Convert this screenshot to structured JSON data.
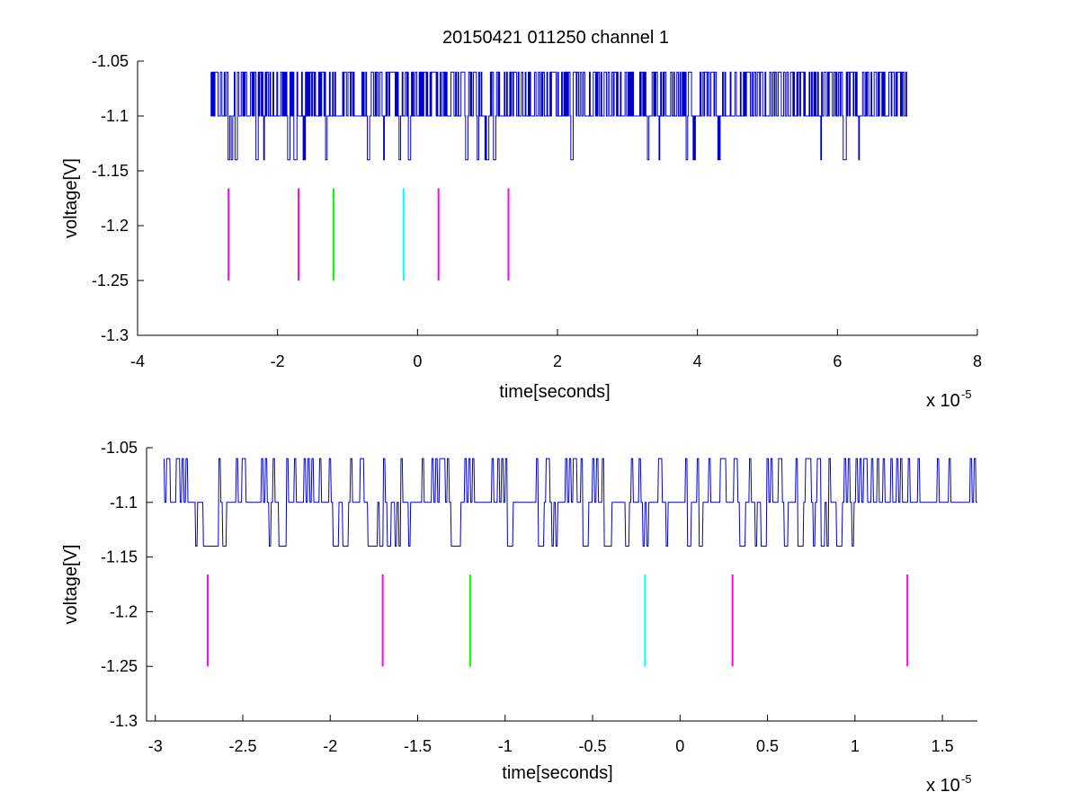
{
  "title": "20150421 011250 channel 1",
  "chart_data": [
    {
      "type": "line",
      "title": "20150421 011250 channel 1",
      "xlabel": "time[seconds]",
      "ylabel": "voltage[V]",
      "x_exponent_label": "x 10",
      "x_exponent": "-5",
      "xlim": [
        -4,
        8
      ],
      "ylim": [
        -1.3,
        -1.05
      ],
      "xticks": [
        "-4",
        "-2",
        "0",
        "2",
        "4",
        "6",
        "8"
      ],
      "yticks": [
        "-1.05",
        "-1.1",
        "-1.15",
        "-1.2",
        "-1.25",
        "-1.3"
      ],
      "grid": false,
      "series": [
        {
          "kind": "step-signal",
          "color": "#0000cc",
          "x_range": [
            -2.95,
            7.0
          ],
          "levels": [
            -1.06,
            -1.1,
            -1.14
          ],
          "baseline": -1.1,
          "dip_times": [
            -2.7,
            -2.65,
            -2.6,
            -2.3,
            -2.2,
            -1.85,
            -1.75,
            -1.62,
            -1.3,
            -0.7,
            -0.5,
            -0.25,
            -0.12,
            0.7,
            0.85,
            0.95,
            1.0,
            1.1,
            2.2,
            3.3,
            3.45,
            3.85,
            3.95,
            4.3,
            5.75,
            6.1,
            6.3
          ]
        }
      ],
      "markers": [
        {
          "x": -2.7,
          "color": "#ff00ff",
          "y_range": [
            -1.25,
            -1.166
          ]
        },
        {
          "x": -1.7,
          "color": "#ff00ff",
          "y_range": [
            -1.25,
            -1.166
          ]
        },
        {
          "x": -1.2,
          "color": "#00ff00",
          "y_range": [
            -1.25,
            -1.166
          ]
        },
        {
          "x": -0.2,
          "color": "#00ffff",
          "y_range": [
            -1.25,
            -1.166
          ]
        },
        {
          "x": 0.3,
          "color": "#ff00ff",
          "y_range": [
            -1.25,
            -1.166
          ]
        },
        {
          "x": 1.3,
          "color": "#ff00ff",
          "y_range": [
            -1.25,
            -1.166
          ]
        }
      ]
    },
    {
      "type": "line",
      "xlabel": "time[seconds]",
      "ylabel": "voltage[V]",
      "x_exponent_label": "x 10",
      "x_exponent": "-5",
      "xlim": [
        -3.05,
        1.7
      ],
      "ylim": [
        -1.3,
        -1.05
      ],
      "xticks": [
        "-3",
        "-2.5",
        "-2",
        "-1.5",
        "-1",
        "-0.5",
        "0",
        "0.5",
        "1",
        "1.5"
      ],
      "yticks": [
        "-1.05",
        "-1.1",
        "-1.15",
        "-1.2",
        "-1.25",
        "-1.3"
      ],
      "grid": false,
      "series": [
        {
          "kind": "step-signal",
          "color": "#0000cc",
          "x_range": [
            -2.95,
            1.7
          ],
          "levels": [
            -1.06,
            -1.1,
            -1.14
          ],
          "baseline": -1.1,
          "dip_times": [
            -2.78,
            -2.74,
            -2.7,
            -2.66,
            -2.62,
            -2.35,
            -2.28,
            -1.98,
            -1.92,
            -1.78,
            -1.75,
            -1.72,
            -1.68,
            -1.64,
            -1.62,
            -1.55,
            -1.3,
            -1.28,
            -0.98,
            -0.8,
            -0.72,
            -0.55,
            -0.42,
            -0.32,
            -0.2,
            -0.08,
            0.05,
            0.12,
            0.35,
            0.42,
            0.47,
            0.6,
            0.68,
            0.76,
            0.82,
            0.9,
            0.98
          ]
        }
      ],
      "markers": [
        {
          "x": -2.7,
          "color": "#ff00ff",
          "y_range": [
            -1.25,
            -1.166
          ]
        },
        {
          "x": -1.7,
          "color": "#ff00ff",
          "y_range": [
            -1.25,
            -1.166
          ]
        },
        {
          "x": -1.2,
          "color": "#00ff00",
          "y_range": [
            -1.25,
            -1.166
          ]
        },
        {
          "x": -0.2,
          "color": "#00ffff",
          "y_range": [
            -1.25,
            -1.166
          ]
        },
        {
          "x": 0.3,
          "color": "#ff00ff",
          "y_range": [
            -1.25,
            -1.166
          ]
        },
        {
          "x": 1.3,
          "color": "#ff00ff",
          "y_range": [
            -1.25,
            -1.166
          ]
        }
      ]
    }
  ]
}
